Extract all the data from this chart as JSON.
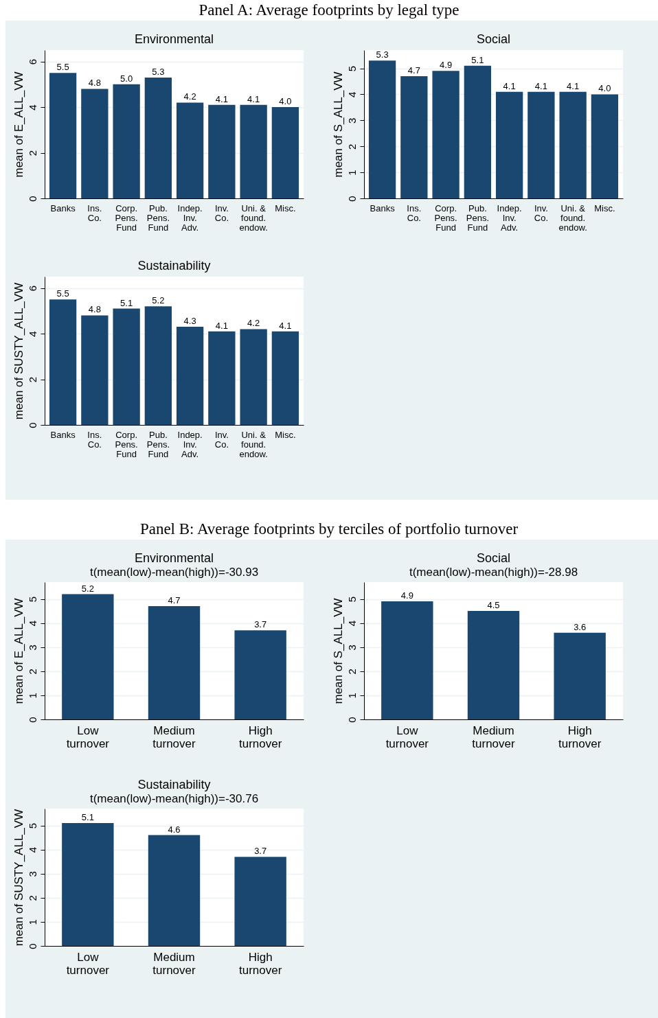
{
  "chart_data": [
    {
      "type": "bar",
      "annotations": [
        "Panel A: Average footprints by legal type"
      ],
      "title": "Environmental",
      "ylabel": "mean of E_ALL_VW",
      "categories": [
        "Banks",
        "Ins.\nCo.",
        "Corp.\nPens.\nFund",
        "Pub.\nPens.\nFund",
        "Indep.\nInv.\nAdv.",
        "Inv.\nCo.",
        "Uni. &\nfound.\nendow.",
        "Misc."
      ],
      "values": [
        5.5,
        4.8,
        5.0,
        5.3,
        4.2,
        4.1,
        4.1,
        4.0
      ],
      "data_labels": true,
      "value_labels": [
        "5.5",
        "4.8",
        "5.0",
        "5.3",
        "4.2",
        "4.1",
        "4.1",
        "4.0"
      ],
      "color": "#1a476f",
      "ylim": [
        0,
        6.5
      ],
      "yticks": [
        0,
        2,
        4,
        6
      ],
      "grid": "y"
    },
    {
      "type": "bar",
      "title": "Social",
      "ylabel": "mean of S_ALL_VW",
      "categories": [
        "Banks",
        "Ins.\nCo.",
        "Corp.\nPens.\nFund",
        "Pub.\nPens.\nFund",
        "Indep.\nInv.\nAdv.",
        "Inv.\nCo.",
        "Uni. &\nfound.\nendow.",
        "Misc."
      ],
      "values": [
        5.3,
        4.7,
        4.9,
        5.1,
        4.1,
        4.1,
        4.1,
        4.0
      ],
      "data_labels": true,
      "value_labels": [
        "5.3",
        "4.7",
        "4.9",
        "5.1",
        "4.1",
        "4.1",
        "4.1",
        "4.0"
      ],
      "color": "#1a476f",
      "ylim": [
        0,
        5.7
      ],
      "yticks": [
        0,
        1,
        2,
        3,
        4,
        5
      ],
      "grid": "y"
    },
    {
      "type": "bar",
      "title": "Sustainability",
      "ylabel": "mean of SUSTY_ALL_VW",
      "categories": [
        "Banks",
        "Ins.\nCo.",
        "Corp.\nPens.\nFund",
        "Pub.\nPens.\nFund",
        "Indep.\nInv.\nAdv.",
        "Inv.\nCo.",
        "Uni. &\nfound.\nendow.",
        "Misc."
      ],
      "values": [
        5.5,
        4.8,
        5.1,
        5.2,
        4.3,
        4.1,
        4.2,
        4.1
      ],
      "color": "#1a476f",
      "ylim": [
        0,
        6.5
      ],
      "yticks": [
        0,
        2,
        4,
        6
      ],
      "grid": "y",
      "data_labels": true
    },
    {
      "type": "bar",
      "annotations": [
        "Panel B: Average footprints by terciles of portfolio turnover"
      ],
      "title": "Environmental",
      "subtitle": "t(mean(low)-mean(high))=-30.93",
      "ylabel": "mean of E_ALL_VW",
      "categories": [
        "Low\nturnover",
        "Medium\nturnover",
        "High\nturnover"
      ],
      "values": [
        5.2,
        4.7,
        3.7
      ],
      "color": "#1a476f",
      "ylim": [
        0,
        5.7
      ],
      "yticks": [
        0,
        1,
        2,
        3,
        4,
        5
      ],
      "grid": "y",
      "data_labels": true
    },
    {
      "type": "bar",
      "title": "Social",
      "subtitle": "t(mean(low)-mean(high))=-28.98",
      "ylabel": "mean of S_ALL_VW",
      "categories": [
        "Low\nturnover",
        "Medium\nturnover",
        "High\nturnover"
      ],
      "values": [
        4.9,
        4.5,
        3.6
      ],
      "color": "#1a476f",
      "ylim": [
        0,
        5.7
      ],
      "yticks": [
        0,
        1,
        2,
        3,
        4,
        5
      ],
      "grid": "y",
      "data_labels": true
    },
    {
      "type": "bar",
      "title": "Sustainability",
      "subtitle": "t(mean(low)-mean(high))=-30.76",
      "ylabel": "mean of SUSTY_ALL_VW",
      "categories": [
        "Low\nturnover",
        "Medium\nturnover",
        "High\nturnover"
      ],
      "values": [
        5.1,
        4.6,
        3.7
      ],
      "color": "#1a476f",
      "ylim": [
        0,
        5.7
      ],
      "yticks": [
        0,
        1,
        2,
        3,
        4,
        5
      ],
      "grid": "y",
      "data_labels": true
    }
  ]
}
